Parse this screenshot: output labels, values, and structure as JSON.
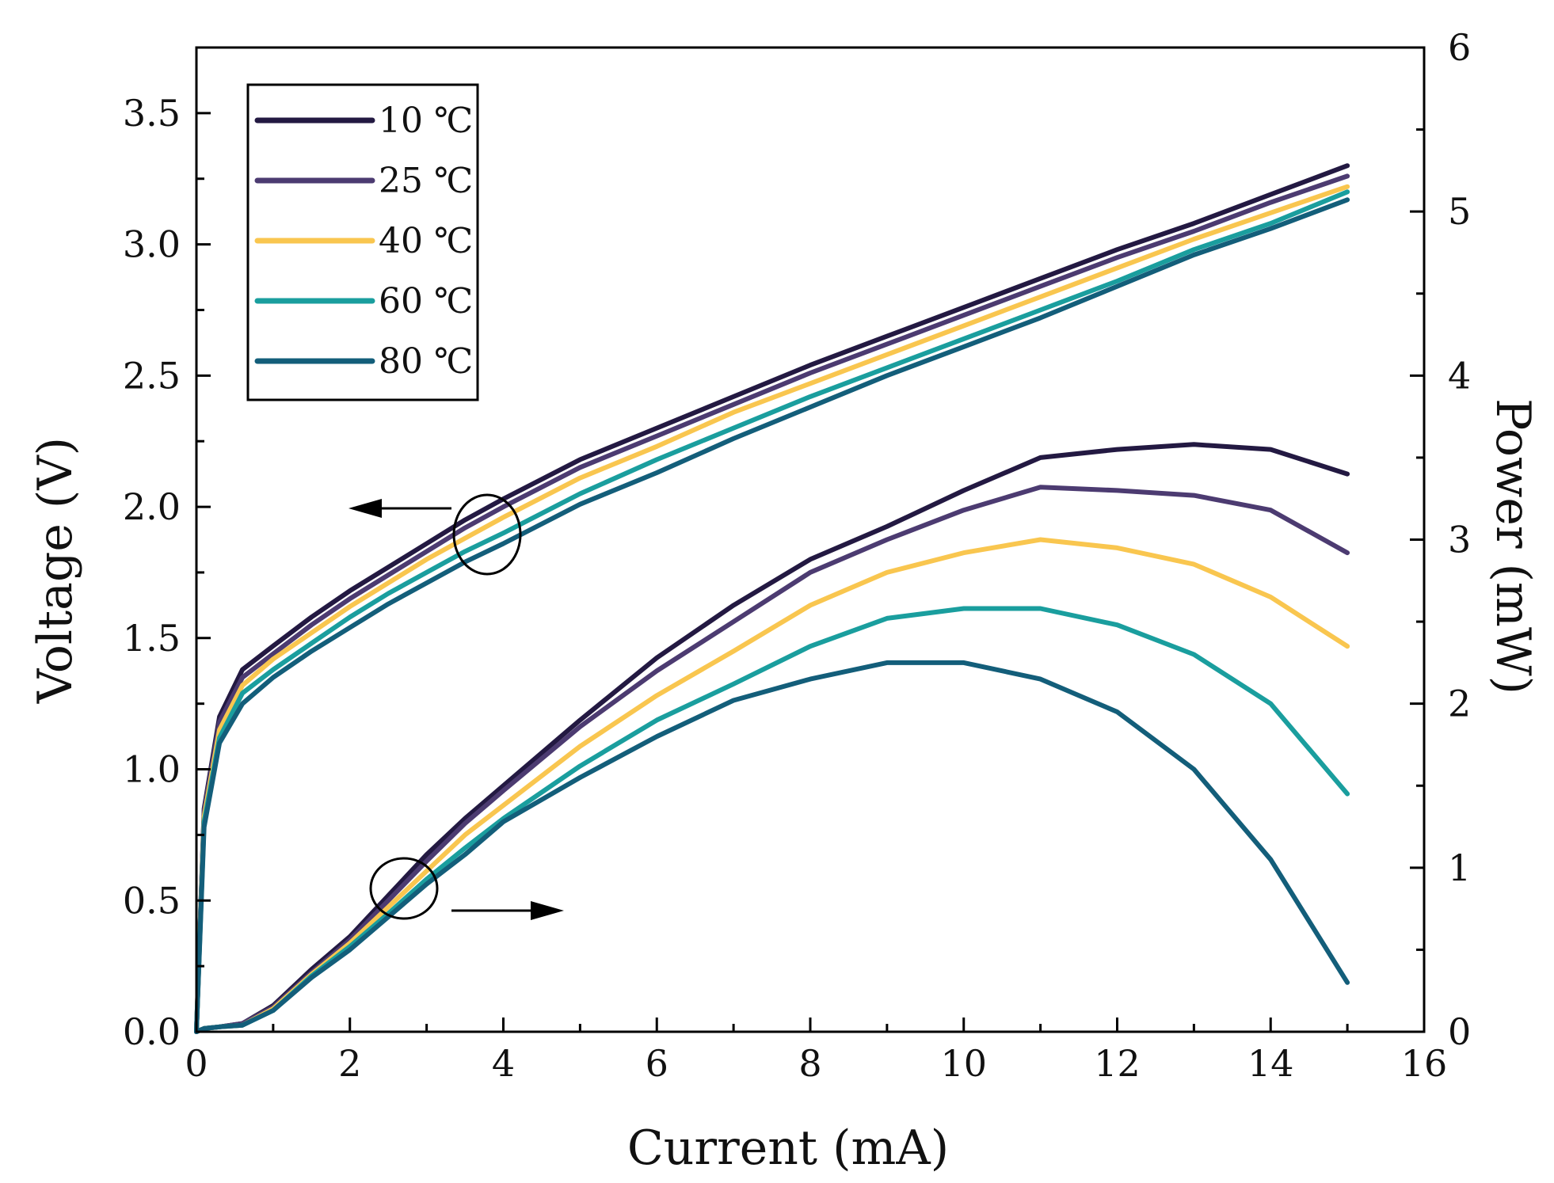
{
  "chart_data": {
    "type": "line",
    "title": "",
    "xlabel": "Current (mA)",
    "ylabel": "Voltage (V)",
    "y2label": "Power (mW)",
    "xlim": [
      0,
      16
    ],
    "ylim": [
      0,
      3.75
    ],
    "y2lim": [
      0,
      6
    ],
    "x_ticks": [
      "0",
      "2",
      "4",
      "6",
      "8",
      "10",
      "12",
      "14",
      "16"
    ],
    "y_ticks": [
      "0.0",
      "0.5",
      "1.0",
      "1.5",
      "2.0",
      "2.5",
      "3.0",
      "3.5"
    ],
    "y2_ticks": [
      "0",
      "1",
      "2",
      "3",
      "4",
      "5",
      "6"
    ],
    "grid": false,
    "legend_position": "top-left",
    "annotations": [
      {
        "text": "circle-arrow",
        "meaning": "voltage curves read on left axis"
      },
      {
        "text": "circle-arrow",
        "meaning": "power curves read on right axis"
      }
    ],
    "x": [
      0,
      0.1,
      0.3,
      0.6,
      1,
      1.5,
      2,
      2.5,
      3,
      3.5,
      4,
      5,
      6,
      7,
      8,
      9,
      10,
      11,
      12,
      13,
      14,
      15
    ],
    "series": [
      {
        "name": "10 ℃",
        "color": "#231942",
        "voltage": [
          0,
          0.85,
          1.2,
          1.38,
          1.47,
          1.58,
          1.68,
          1.77,
          1.86,
          1.95,
          2.03,
          2.18,
          2.3,
          2.42,
          2.54,
          2.65,
          2.76,
          2.87,
          2.98,
          3.08,
          3.19,
          3.3
        ],
        "power": [
          0,
          0.02,
          0.03,
          0.05,
          0.16,
          0.38,
          0.58,
          0.83,
          1.08,
          1.3,
          1.5,
          1.9,
          2.28,
          2.6,
          2.88,
          3.08,
          3.3,
          3.5,
          3.55,
          3.58,
          3.55,
          3.4
        ]
      },
      {
        "name": "25 ℃",
        "color": "#4c3b71",
        "voltage": [
          0,
          0.84,
          1.18,
          1.35,
          1.44,
          1.55,
          1.65,
          1.74,
          1.83,
          1.92,
          2.0,
          2.15,
          2.27,
          2.39,
          2.51,
          2.62,
          2.73,
          2.84,
          2.95,
          3.05,
          3.16,
          3.26
        ],
        "power": [
          0,
          0.02,
          0.03,
          0.05,
          0.15,
          0.36,
          0.56,
          0.8,
          1.04,
          1.27,
          1.47,
          1.86,
          2.2,
          2.5,
          2.8,
          3.0,
          3.18,
          3.32,
          3.3,
          3.27,
          3.18,
          2.92
        ]
      },
      {
        "name": "40 ℃",
        "color": "#f9c64f",
        "voltage": [
          0,
          0.82,
          1.15,
          1.32,
          1.42,
          1.52,
          1.62,
          1.71,
          1.8,
          1.88,
          1.96,
          2.11,
          2.23,
          2.36,
          2.47,
          2.58,
          2.69,
          2.8,
          2.91,
          3.02,
          3.12,
          3.22
        ],
        "power": [
          0,
          0.02,
          0.03,
          0.04,
          0.14,
          0.35,
          0.54,
          0.76,
          0.98,
          1.2,
          1.38,
          1.74,
          2.05,
          2.32,
          2.6,
          2.8,
          2.92,
          3.0,
          2.95,
          2.85,
          2.65,
          2.35
        ]
      },
      {
        "name": "60 ℃",
        "color": "#1a9e9e",
        "voltage": [
          0,
          0.8,
          1.12,
          1.29,
          1.38,
          1.48,
          1.58,
          1.67,
          1.75,
          1.83,
          1.9,
          2.05,
          2.18,
          2.3,
          2.42,
          2.53,
          2.64,
          2.75,
          2.86,
          2.98,
          3.08,
          3.2
        ],
        "power": [
          0,
          0.02,
          0.03,
          0.04,
          0.13,
          0.34,
          0.52,
          0.72,
          0.93,
          1.12,
          1.3,
          1.62,
          1.9,
          2.12,
          2.35,
          2.52,
          2.58,
          2.58,
          2.48,
          2.3,
          2.0,
          1.45
        ]
      },
      {
        "name": "80 ℃",
        "color": "#135e7a",
        "voltage": [
          0,
          0.78,
          1.1,
          1.25,
          1.35,
          1.45,
          1.54,
          1.63,
          1.71,
          1.79,
          1.86,
          2.01,
          2.13,
          2.26,
          2.38,
          2.5,
          2.61,
          2.72,
          2.84,
          2.96,
          3.06,
          3.17
        ],
        "power": [
          0,
          0.02,
          0.03,
          0.04,
          0.13,
          0.33,
          0.5,
          0.7,
          0.9,
          1.08,
          1.28,
          1.55,
          1.8,
          2.02,
          2.15,
          2.25,
          2.25,
          2.15,
          1.95,
          1.6,
          1.05,
          0.3
        ]
      }
    ]
  }
}
